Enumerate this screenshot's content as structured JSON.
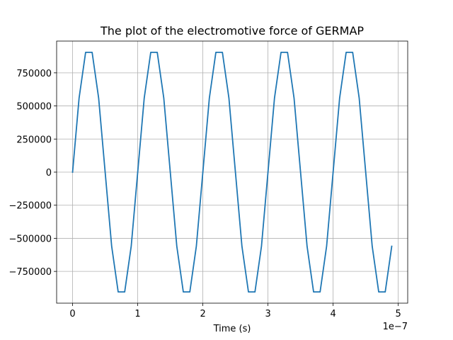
{
  "chart_data": {
    "type": "line",
    "title": "The plot of the electromotive force of GERMAP",
    "xlabel": "Time (s)",
    "ylabel": "",
    "x_offset_text": "1e−7",
    "x_scale": 1e-07,
    "xlim": [
      -2.45e-08,
      5.145e-07
    ],
    "ylim": [
      -990000,
      990000
    ],
    "grid": true,
    "x_ticks": [
      0,
      1e-07,
      2e-07,
      3e-07,
      4e-07,
      5e-07
    ],
    "x_tick_labels": [
      "0",
      "1",
      "2",
      "3",
      "4",
      "5"
    ],
    "y_ticks": [
      -750000,
      -500000,
      -250000,
      0,
      250000,
      500000,
      750000
    ],
    "y_tick_labels": [
      "−750000",
      "−500000",
      "−250000",
      "0",
      "250000",
      "500000",
      "750000"
    ],
    "series": [
      {
        "color": "#1f77b4",
        "x": [
          0,
          1e-08,
          2e-08,
          3e-08,
          4e-08,
          5e-08,
          6e-08,
          7e-08,
          8e-08,
          9e-08,
          1e-07,
          1.1e-07,
          1.2e-07,
          1.3e-07,
          1.4e-07,
          1.5e-07,
          1.6e-07,
          1.7e-07,
          1.8e-07,
          1.9e-07,
          2e-07,
          2.1e-07,
          2.2e-07,
          2.3e-07,
          2.4e-07,
          2.5e-07,
          2.6e-07,
          2.7e-07,
          2.8e-07,
          2.9e-07,
          3e-07,
          3.1e-07,
          3.2e-07,
          3.3e-07,
          3.4e-07,
          3.5e-07,
          3.6e-07,
          3.7e-07,
          3.8e-07,
          3.9e-07,
          4e-07,
          4.1e-07,
          4.2e-07,
          4.3e-07,
          4.4e-07,
          4.5e-07,
          4.6e-07,
          4.7e-07,
          4.8e-07,
          4.9e-07
        ],
        "y": [
          0,
          560000,
          905000,
          905000,
          560000,
          0,
          -560000,
          -905000,
          -905000,
          -560000,
          0,
          560000,
          905000,
          905000,
          560000,
          0,
          -560000,
          -905000,
          -905000,
          -560000,
          0,
          560000,
          905000,
          905000,
          560000,
          0,
          -560000,
          -905000,
          -905000,
          -560000,
          0,
          560000,
          905000,
          905000,
          560000,
          0,
          -560000,
          -905000,
          -905000,
          -560000,
          0,
          560000,
          905000,
          905000,
          560000,
          0,
          -560000,
          -905000,
          -905000,
          -560000
        ]
      }
    ]
  }
}
